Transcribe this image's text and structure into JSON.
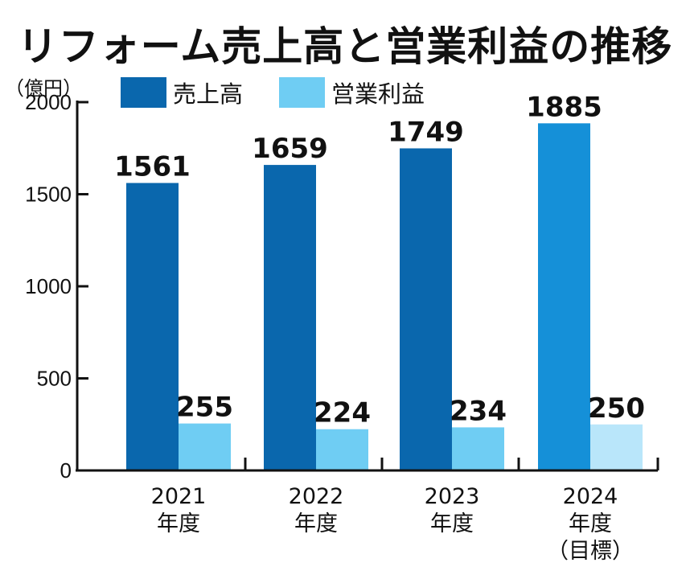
{
  "title": "リフォーム売上高と営業利益の推移",
  "unit": "（億円）",
  "legend": {
    "sales": "売上高",
    "profit": "営業利益"
  },
  "colors": {
    "sales": "#0a67ad",
    "sales_target": "#1590d8",
    "profit": "#6fcdf3",
    "profit_target": "#b9e6fa",
    "axis": "#111111"
  },
  "chart_data": {
    "type": "bar",
    "categories": [
      [
        "2021",
        "年度"
      ],
      [
        "2022",
        "年度"
      ],
      [
        "2023",
        "年度"
      ],
      [
        "2024",
        "年度",
        "（目標）"
      ]
    ],
    "series": [
      {
        "name": "売上高",
        "values": [
          1561,
          1659,
          1749,
          1885
        ]
      },
      {
        "name": "営業利益",
        "values": [
          255,
          224,
          234,
          250
        ]
      }
    ],
    "ylim": [
      0,
      2000
    ],
    "yticks": [
      0,
      500,
      1000,
      1500,
      2000
    ],
    "legend_position": "top-left",
    "grid": false
  }
}
